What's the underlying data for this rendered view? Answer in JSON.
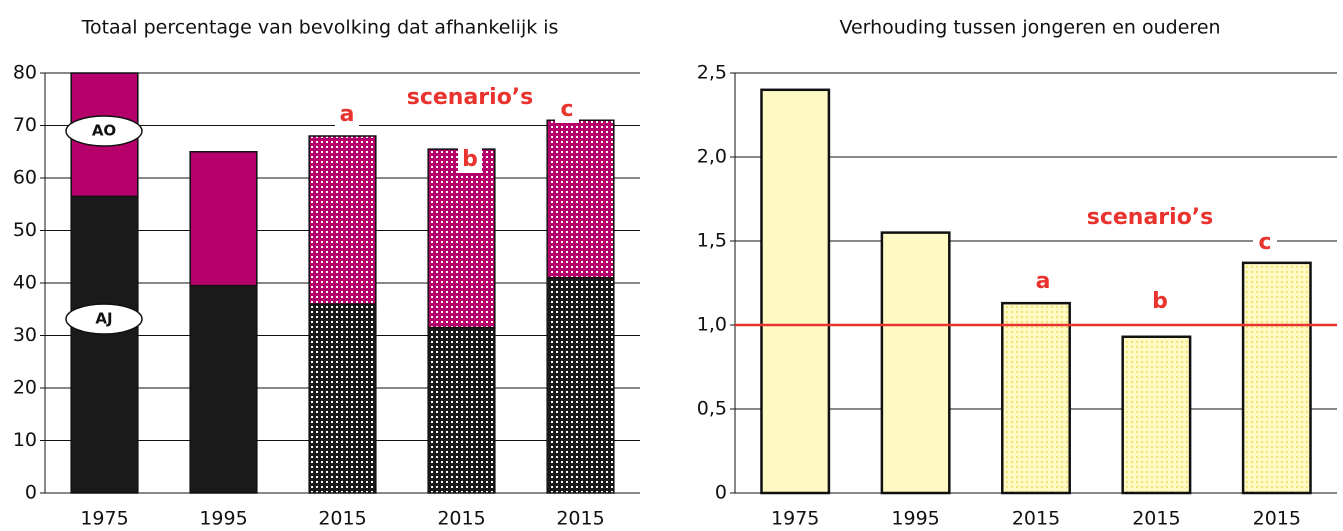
{
  "chart_data": [
    {
      "type": "stacked_bar",
      "title": "Totaal percentage van bevolking dat afhankelijk is",
      "categories": [
        "1975",
        "1995",
        "2015",
        "2015",
        "2015"
      ],
      "series": [
        {
          "name": "AJ",
          "color": "#1a1a1a",
          "values": [
            56.5,
            39.5,
            36,
            31.5,
            41
          ]
        },
        {
          "name": "AO",
          "color": "#b5006b",
          "values": [
            23.5,
            25.5,
            32,
            34,
            30
          ]
        }
      ],
      "patterned": [
        false,
        false,
        true,
        true,
        true
      ],
      "annotations": [
        "a",
        "b",
        "c",
        "scenario’s"
      ],
      "ylim": [
        0,
        80
      ],
      "yticks": [
        0,
        10,
        20,
        30,
        40,
        50,
        60,
        70,
        80
      ],
      "grid": true
    },
    {
      "type": "bar",
      "title": "Verhouding tussen jongeren en ouderen",
      "categories": [
        "1975",
        "1995",
        "2015",
        "2015",
        "2015"
      ],
      "values": [
        2.4,
        1.55,
        1.13,
        0.93,
        1.37
      ],
      "color": "#fff9c4",
      "patterned": [
        false,
        false,
        true,
        true,
        true
      ],
      "annotations": [
        "a",
        "b",
        "c",
        "scenario’s"
      ],
      "reference_line": {
        "value": 1,
        "color": "#e8332e"
      },
      "ylim": [
        0,
        2.5
      ],
      "yticks": [
        0,
        {
          "value": 0.5,
          "label": "0,5"
        },
        {
          "value": 1,
          "label": "1,0"
        },
        {
          "value": 1.5,
          "label": "1,5"
        },
        {
          "value": 2,
          "label": "2,0"
        },
        {
          "value": 2.5,
          "label": "2,5"
        }
      ],
      "grid": true
    }
  ]
}
